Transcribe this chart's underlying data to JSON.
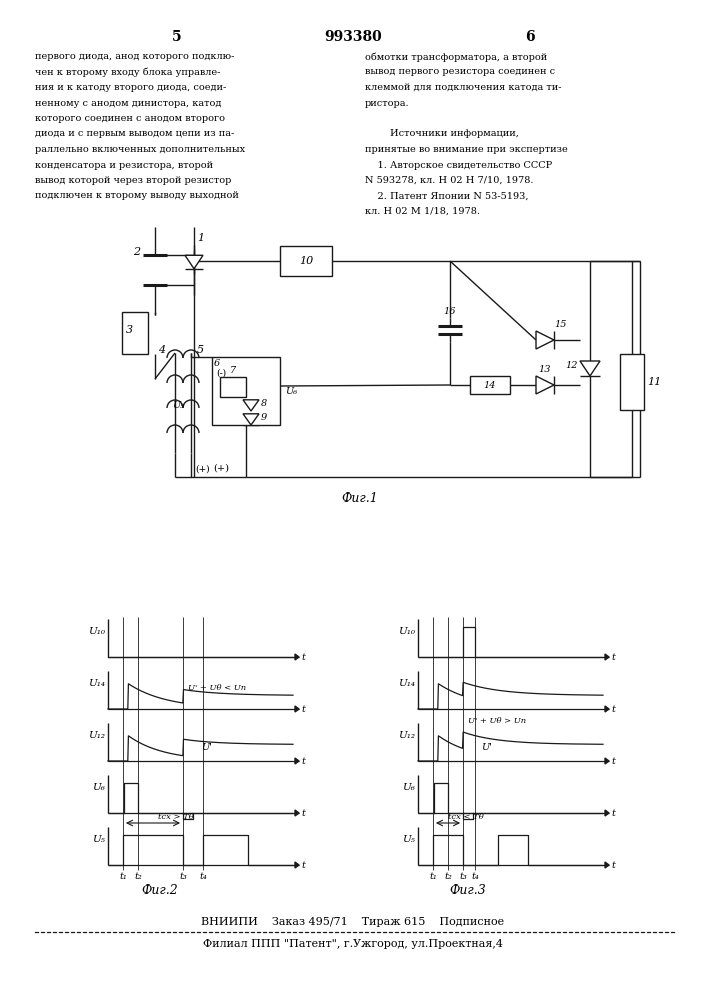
{
  "page_number_left": "5",
  "page_number_center": "993380",
  "page_number_right": "6",
  "text_left_lines": [
    "первого диода, анод которого подклю-",
    "чен к второму входу блока управле-",
    "ния и к катоду второго диода, соеди-",
    "ненному с анодом динистора, катод",
    "которого соединен с анодом второго",
    "диода и с первым выводом цепи из па-",
    "раллельно включенных дополнительных",
    "конденсатора и резистора, второй",
    "вывод которой через второй резистор",
    "подключен к второму выводу выходной"
  ],
  "text_right_lines": [
    "обмотки трансформатора, а второй",
    "вывод первого резистора соединен с",
    "клеммой для подключения катода ти-",
    "ристора.",
    "",
    "        Источники информации,",
    "принятые во внимание при экспертизе",
    "    1. Авторское свидетельство СССР",
    "N 593278, кл. Н 02 Н 7/10, 1978.",
    "    2. Патент Японии N 53-5193,",
    "кл. Н 02 М 1/18, 1978."
  ],
  "footnote_line1": "ВНИИПИ    Заказ 495/71    Тираж 615    Подписное",
  "footnote_line2": "Филиал ППП \"Патент\", г.Ужгород, ул.Проектная,4",
  "fig1_label": "Фиг.1",
  "fig2_label": "Фиг.2",
  "fig3_label": "Фиг.3",
  "bg_color": "#ffffff",
  "text_color": "#000000"
}
